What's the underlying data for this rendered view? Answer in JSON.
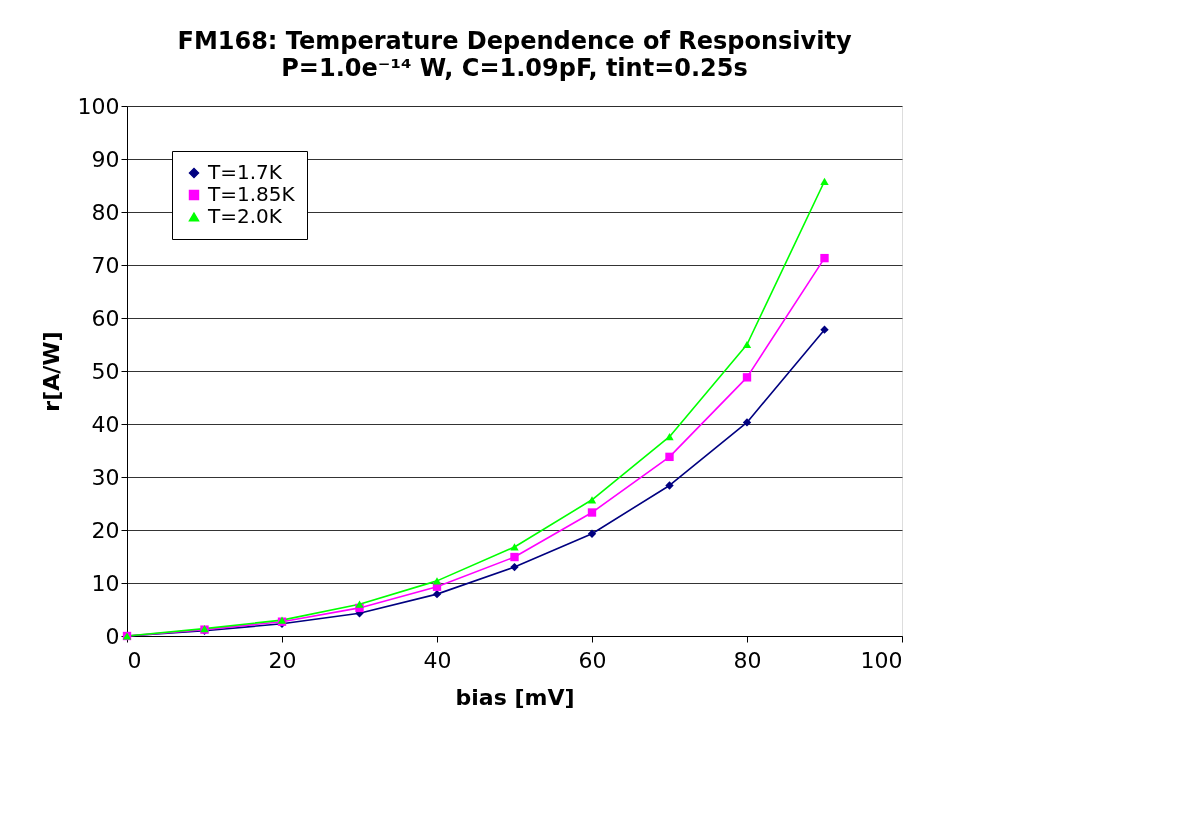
{
  "chart_data": {
    "type": "line",
    "title": "FM168: Temperature Dependence of Responsivity",
    "subtitle": "P=1.0e⁻¹⁴ W, C=1.09pF, tint=0.25s",
    "xlabel": "bias [mV]",
    "ylabel": "r[A/W]",
    "x": [
      0,
      10,
      20,
      30,
      40,
      50,
      60,
      70,
      80,
      90
    ],
    "series": [
      {
        "name": "T=1.7K",
        "color": "#000080",
        "marker": "diamond",
        "values": [
          0,
          1.0,
          2.3,
          4.3,
          7.9,
          13.0,
          19.3,
          28.4,
          40.3,
          57.8
        ]
      },
      {
        "name": "T=1.85K",
        "color": "#ff00ff",
        "marker": "square",
        "values": [
          0,
          1.2,
          2.7,
          5.3,
          9.3,
          14.9,
          23.3,
          33.8,
          48.8,
          71.3
        ]
      },
      {
        "name": "T=2.0K",
        "color": "#00ff00",
        "marker": "triangle",
        "values": [
          0,
          1.4,
          3.0,
          6.0,
          10.4,
          16.8,
          25.7,
          37.6,
          55.0,
          85.8
        ]
      }
    ],
    "xlim": [
      0,
      100
    ],
    "xticks": [
      0,
      20,
      40,
      60,
      80,
      100
    ],
    "ylim": [
      0,
      100
    ],
    "yticks": [
      0,
      10,
      20,
      30,
      40,
      50,
      60,
      70,
      80,
      90,
      100
    ],
    "grid": "y",
    "legend": "top left"
  }
}
